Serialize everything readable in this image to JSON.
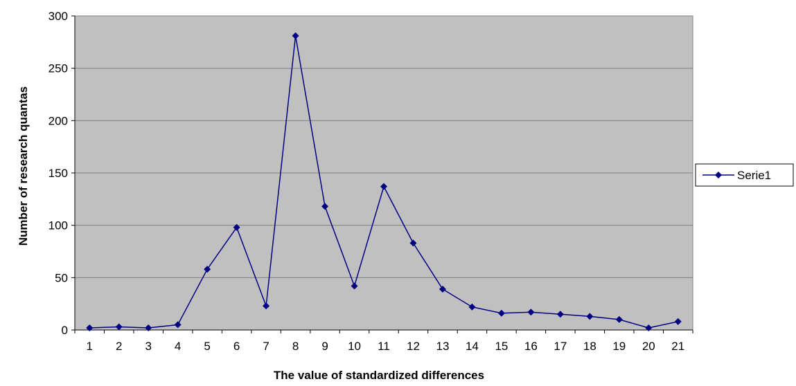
{
  "chart_data": {
    "type": "line",
    "title": "",
    "xlabel": "The value of standardized differences",
    "ylabel": "Number of research quantas",
    "categories": [
      "1",
      "2",
      "3",
      "4",
      "5",
      "6",
      "7",
      "8",
      "9",
      "10",
      "11",
      "12",
      "13",
      "14",
      "15",
      "16",
      "17",
      "18",
      "19",
      "20",
      "21"
    ],
    "series": [
      {
        "name": "Serie1",
        "values": [
          2,
          3,
          2,
          5,
          58,
          98,
          23,
          281,
          118,
          42,
          137,
          83,
          39,
          22,
          16,
          17,
          15,
          13,
          10,
          2,
          8
        ]
      }
    ],
    "ylim": [
      0,
      300
    ],
    "yticks": [
      0,
      50,
      100,
      150,
      200,
      250,
      300
    ],
    "grid": true,
    "legend": "right",
    "colors": {
      "plot_background": "#c0c0c0",
      "series": "#000080",
      "gridline": "#808080"
    },
    "marker": "diamond-icon"
  }
}
